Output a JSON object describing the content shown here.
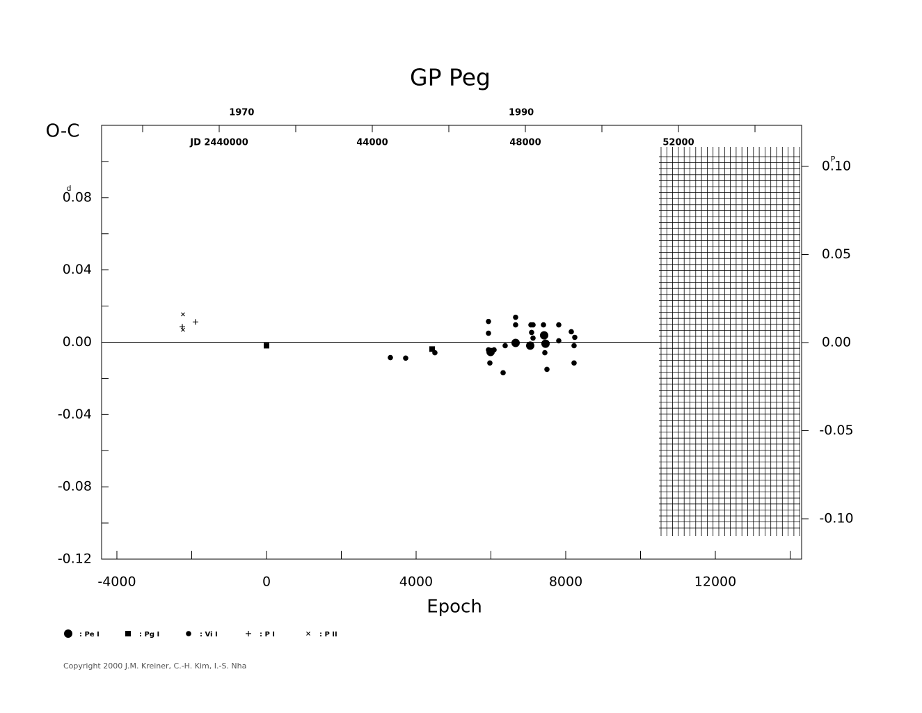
{
  "chart_data": {
    "type": "scatter",
    "title": "GP Peg",
    "ylabel": "O-C",
    "xlabel": "Epoch",
    "yunit": "d",
    "y2unit": "P",
    "copyright": "Copyright 2000 J.M. Kreiner, C.-H. Kim, I.-S. Nha",
    "xlim": [
      -4409,
      14307
    ],
    "xticks": [
      -4000,
      0,
      4000,
      8000,
      12000
    ],
    "xminorticks": [
      -2000,
      2000,
      6000,
      10000,
      14000
    ],
    "ylim": [
      -0.12,
      0.12
    ],
    "yticks": [
      -0.12,
      -0.08,
      -0.04,
      {
        "value": 0,
        "label": "0.00"
      },
      0.04,
      0.08
    ],
    "yminorticks": [
      -0.1,
      -0.06,
      -0.02,
      0.02,
      0.06,
      0.1
    ],
    "y2lim": [
      -0.1229,
      0.1233
    ],
    "y2ticks": [
      {
        "value": -0.1,
        "label": "-0.10"
      },
      -0.05,
      {
        "value": 0,
        "label": "0.00"
      },
      0.05,
      {
        "value": 0.1,
        "label": "0.10"
      }
    ],
    "top_axis": {
      "xlim": [
        36927,
        55218
      ],
      "ticks": [
        38000,
        40000,
        42000,
        44000,
        46000,
        48000,
        50000,
        52000,
        54000
      ],
      "labels": [
        {
          "value": 40000,
          "label": "JD  2440000"
        },
        44000,
        48000,
        52000
      ],
      "year_labels": [
        {
          "value": 40587.5,
          "label": "1970"
        },
        {
          "value": 47892.5,
          "label": "1990"
        }
      ]
    },
    "zero_line": true,
    "series": [
      {
        "name": "Pe I",
        "marker": "big-circle",
        "color": "#000000",
        "x": [
          5991,
          6660,
          7051,
          7423,
          7460
        ],
        "values": [
          -0.0054,
          -0.0004,
          -0.0019,
          0.0038,
          -0.0008
        ]
      },
      {
        "name": "Pg I",
        "marker": "square",
        "color": "#000000",
        "x": [
          0,
          4428
        ],
        "values": [
          -0.0019,
          -0.0038
        ]
      },
      {
        "name": "Vi I",
        "marker": "small-circle",
        "color": "#000000",
        "x": [
          3312,
          3721,
          4502,
          5935,
          5935,
          5935,
          5972,
          6084,
          6326,
          6381,
          6660,
          6660,
          7070,
          7126,
          7088,
          7126,
          7405,
          7442,
          7498,
          7814,
          7814,
          8149,
          8242,
          8223,
          8223
        ],
        "values": [
          -0.0085,
          -0.0088,
          -0.0058,
          0.0115,
          0.005,
          -0.0042,
          -0.0115,
          -0.0042,
          -0.0169,
          -0.0019,
          0.0138,
          0.0096,
          0.0096,
          0.0096,
          0.0054,
          0.0023,
          0.0096,
          -0.0058,
          -0.015,
          0.0096,
          0.0008,
          0.0058,
          0.0027,
          -0.0019,
          -0.0115
        ]
      },
      {
        "name": "P I",
        "marker": "plus",
        "color": "#000000",
        "x": [
          -2251,
          -1898
        ],
        "values": [
          0.0085,
          0.0112
        ]
      },
      {
        "name": "P II",
        "marker": "cross",
        "color": "#000000",
        "x": [
          -2233,
          -2233
        ],
        "values": [
          0.0154,
          0.0069
        ]
      }
    ]
  }
}
